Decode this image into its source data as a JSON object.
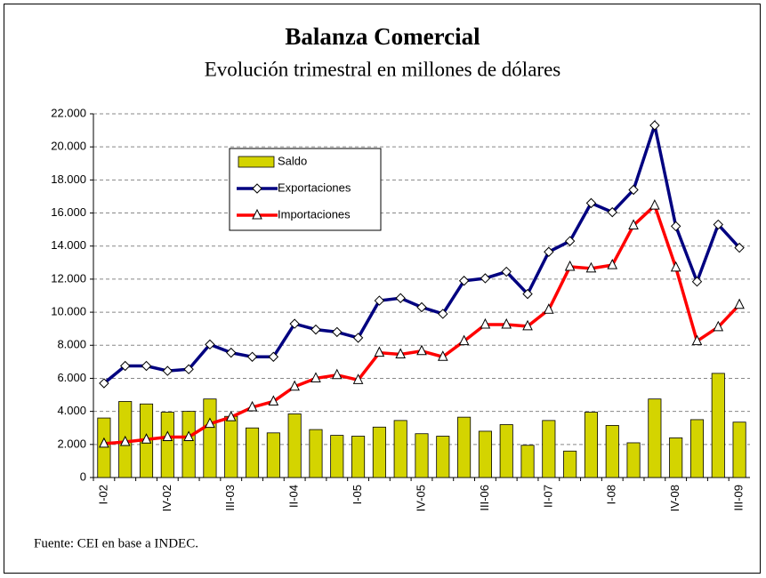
{
  "chart_data": {
    "type": "bar_line",
    "title": "Balanza Comercial",
    "subtitle": "Evolución trimestral en millones de dólares",
    "source": "Fuente: CEI en base a INDEC.",
    "categories": [
      "I-02",
      null,
      null,
      "IV-02",
      null,
      null,
      "III-03",
      null,
      null,
      "II-04",
      null,
      null,
      "I-05",
      null,
      null,
      "IV-05",
      null,
      null,
      "III-06",
      null,
      null,
      "II-07",
      null,
      null,
      "I-08",
      null,
      null,
      "IV-08",
      null,
      null,
      "III-09"
    ],
    "series": [
      {
        "name": "Saldo",
        "type": "bar",
        "color": "#d4d400",
        "values": [
          3600,
          4600,
          4450,
          3950,
          4000,
          4750,
          3700,
          3000,
          2700,
          3850,
          2900,
          2550,
          2500,
          3050,
          3450,
          2650,
          2500,
          3650,
          2800,
          3200,
          1950,
          3450,
          1600,
          3950,
          3150,
          2100,
          4750,
          2400,
          3500,
          6300,
          3350
        ]
      },
      {
        "name": "Exportaciones",
        "type": "line",
        "marker": "diamond",
        "color": "#000080",
        "values": [
          5700,
          6750,
          6750,
          6450,
          6550,
          8050,
          7550,
          7300,
          7300,
          9300,
          8950,
          8800,
          8450,
          10700,
          10850,
          10300,
          9900,
          11900,
          12050,
          12450,
          11100,
          13650,
          14300,
          16600,
          16050,
          17400,
          21300,
          15200,
          11850,
          15300,
          13900
        ]
      },
      {
        "name": "Importaciones",
        "type": "line",
        "marker": "triangle",
        "color": "#ff0000",
        "values": [
          2050,
          2150,
          2300,
          2450,
          2450,
          3250,
          3650,
          4250,
          4600,
          5500,
          6000,
          6200,
          5900,
          7550,
          7450,
          7650,
          7300,
          8250,
          9250,
          9250,
          9150,
          10150,
          12750,
          12650,
          12850,
          15250,
          16450,
          12700,
          8250,
          9100,
          10450
        ]
      }
    ],
    "ylim": [
      0,
      22000
    ],
    "yticks": [
      0,
      {
        "value": 2000,
        "label": "2.000"
      },
      {
        "value": 4000,
        "label": "4.000"
      },
      {
        "value": 6000,
        "label": "6.000"
      },
      {
        "value": 8000,
        "label": "8.000"
      },
      {
        "value": 10000,
        "label": "10.000"
      },
      {
        "value": 12000,
        "label": "12.000"
      },
      {
        "value": 14000,
        "label": "14.000"
      },
      {
        "value": 16000,
        "label": "16.000"
      },
      {
        "value": 18000,
        "label": "18.000"
      },
      {
        "value": 20000,
        "label": "20.000"
      },
      {
        "value": 22000,
        "label": "22.000"
      }
    ],
    "grid": true
  }
}
